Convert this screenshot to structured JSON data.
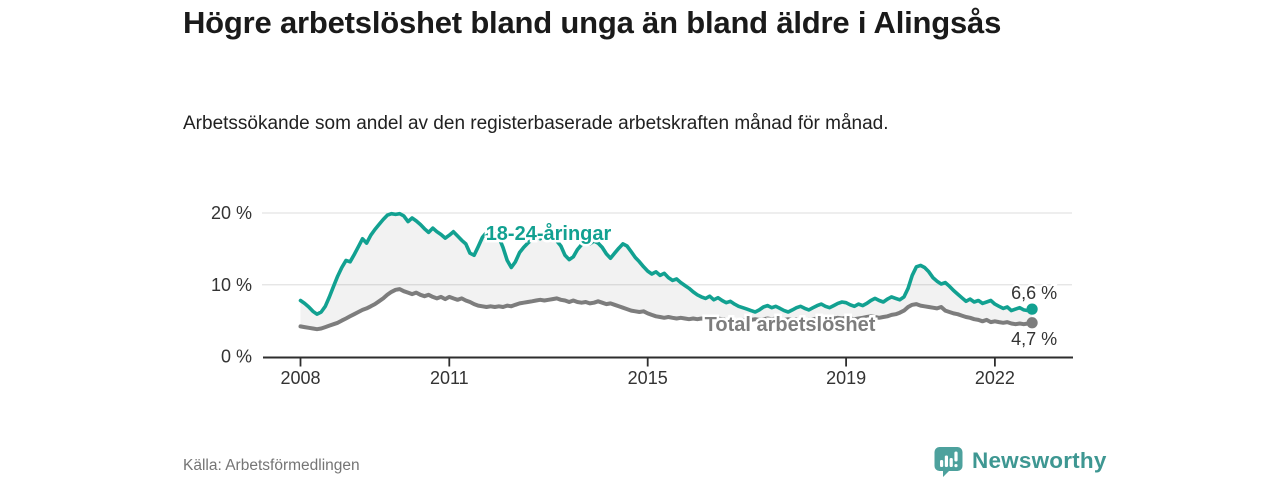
{
  "header": {
    "title": "Högre arbetslöshet bland unga än bland äldre i Alingsås",
    "subtitle": "Arbetssökande som andel av den registerbaserade arbetskraften månad för månad."
  },
  "footer": {
    "source": "Källa: Arbetsförmedlingen",
    "brand": "Newsworthy"
  },
  "colors": {
    "accent_teal": "#12A191",
    "series_gray": "#7d7d7d",
    "brand_teal_icon": "#4DA19D",
    "brand_teal_text": "#3E9792",
    "grid": "#e3e3e3",
    "axis": "#2e2e2e",
    "text_dark": "#333333",
    "band_fill": "rgba(0,0,0,0.05)"
  },
  "chart_data": {
    "type": "line",
    "title": "Högre arbetslöshet bland unga än bland äldre i Alingsås",
    "ylabel": "",
    "xlabel": "",
    "ylim": [
      0,
      20
    ],
    "grid": "horizontal",
    "legend_position": "inline-annotations",
    "frequency": "monthly",
    "start_year": 2008,
    "start_month": 1,
    "yticks": [
      {
        "value": 0,
        "label": "0 %"
      },
      {
        "value": 10,
        "label": "10 %"
      },
      {
        "value": 20,
        "label": "20 %"
      }
    ],
    "xticks": [
      {
        "value": 2008,
        "label": "2008"
      },
      {
        "value": 2011,
        "label": "2011"
      },
      {
        "value": 2015,
        "label": "2015"
      },
      {
        "value": 2019,
        "label": "2019"
      },
      {
        "value": 2022,
        "label": "2022"
      }
    ],
    "series": [
      {
        "name": "18-24-åringar",
        "color": "#12A191",
        "line_width": 3.6,
        "end_label": "6,6 %",
        "end_value": 6.6,
        "values": [
          7.8,
          7.4,
          6.9,
          6.3,
          5.9,
          6.2,
          7.0,
          8.3,
          9.8,
          11.2,
          12.4,
          13.4,
          13.2,
          14.2,
          15.3,
          16.4,
          15.8,
          16.9,
          17.7,
          18.4,
          19.1,
          19.7,
          19.9,
          19.8,
          19.9,
          19.6,
          18.8,
          19.3,
          18.9,
          18.4,
          17.8,
          17.3,
          17.9,
          17.4,
          17.0,
          16.5,
          16.9,
          17.4,
          16.8,
          16.2,
          15.7,
          14.4,
          14.1,
          15.3,
          16.6,
          17.3,
          16.8,
          17.2,
          16.6,
          15.2,
          13.4,
          12.4,
          13.2,
          14.5,
          15.2,
          15.8,
          16.3,
          16.7,
          16.4,
          16.8,
          16.3,
          16.6,
          16.1,
          15.4,
          14.1,
          13.5,
          13.9,
          14.9,
          15.6,
          16.0,
          15.7,
          16.1,
          15.8,
          15.2,
          14.3,
          13.7,
          14.4,
          15.1,
          15.7,
          15.4,
          14.6,
          13.8,
          13.2,
          12.5,
          11.9,
          11.5,
          11.8,
          11.3,
          11.6,
          11.0,
          10.6,
          10.8,
          10.3,
          9.9,
          9.5,
          9.0,
          8.6,
          8.3,
          8.1,
          8.4,
          7.9,
          8.2,
          7.8,
          7.5,
          7.7,
          7.3,
          7.0,
          6.8,
          6.6,
          6.4,
          6.2,
          6.5,
          6.9,
          7.1,
          6.8,
          7.0,
          6.7,
          6.4,
          6.2,
          6.5,
          6.8,
          7.0,
          6.7,
          6.5,
          6.8,
          7.1,
          7.3,
          7.0,
          6.8,
          7.1,
          7.4,
          7.6,
          7.5,
          7.2,
          7.0,
          7.3,
          7.1,
          7.4,
          7.8,
          8.1,
          7.8,
          7.6,
          8.0,
          8.3,
          8.1,
          7.9,
          8.3,
          9.5,
          11.3,
          12.5,
          12.7,
          12.4,
          11.8,
          11.0,
          10.5,
          10.1,
          10.3,
          9.8,
          9.2,
          8.7,
          8.2,
          7.7,
          8.0,
          7.6,
          7.8,
          7.4,
          7.6,
          7.8,
          7.3,
          7.0,
          6.7,
          6.9,
          6.4,
          6.6,
          6.8,
          6.5,
          6.4,
          6.6
        ]
      },
      {
        "name": "Total arbetslöshet",
        "color": "#7d7d7d",
        "line_width": 4,
        "end_label": "4,7 %",
        "end_value": 4.7,
        "values": [
          4.2,
          4.1,
          4.0,
          3.9,
          3.8,
          3.9,
          4.1,
          4.3,
          4.5,
          4.7,
          5.0,
          5.3,
          5.6,
          5.9,
          6.2,
          6.5,
          6.7,
          7.0,
          7.3,
          7.7,
          8.1,
          8.6,
          9.0,
          9.3,
          9.4,
          9.1,
          8.9,
          8.7,
          8.9,
          8.6,
          8.4,
          8.6,
          8.3,
          8.1,
          8.3,
          8.0,
          8.3,
          8.1,
          7.9,
          8.1,
          7.8,
          7.6,
          7.3,
          7.1,
          7.0,
          6.9,
          7.0,
          6.9,
          7.0,
          6.9,
          7.1,
          7.0,
          7.2,
          7.4,
          7.5,
          7.6,
          7.7,
          7.8,
          7.9,
          7.8,
          7.9,
          8.0,
          8.1,
          7.9,
          7.8,
          7.6,
          7.8,
          7.6,
          7.5,
          7.6,
          7.4,
          7.5,
          7.7,
          7.5,
          7.3,
          7.4,
          7.2,
          7.0,
          6.8,
          6.6,
          6.4,
          6.3,
          6.2,
          6.3,
          6.0,
          5.8,
          5.6,
          5.5,
          5.4,
          5.5,
          5.4,
          5.3,
          5.4,
          5.3,
          5.2,
          5.3,
          5.2,
          5.3,
          5.2,
          5.1,
          5.2,
          5.3,
          5.2,
          5.1,
          5.2,
          5.1,
          5.0,
          5.1,
          5.0,
          5.1,
          5.2,
          5.1,
          5.2,
          5.3,
          5.2,
          5.3,
          5.2,
          5.1,
          5.2,
          5.1,
          5.2,
          5.1,
          5.0,
          5.1,
          5.2,
          5.3,
          5.4,
          5.3,
          5.2,
          5.3,
          5.4,
          5.3,
          5.4,
          5.3,
          5.2,
          5.3,
          5.4,
          5.5,
          5.6,
          5.5,
          5.4,
          5.5,
          5.6,
          5.8,
          5.9,
          6.1,
          6.4,
          6.9,
          7.2,
          7.3,
          7.1,
          7.0,
          6.9,
          6.8,
          6.7,
          6.9,
          6.4,
          6.2,
          6.0,
          5.9,
          5.7,
          5.5,
          5.4,
          5.2,
          5.1,
          4.9,
          5.1,
          4.8,
          4.9,
          4.8,
          4.7,
          4.8,
          4.6,
          4.5,
          4.6,
          4.5,
          4.6,
          4.7
        ]
      }
    ],
    "annotations": [
      {
        "series": 0,
        "text": "18-24-åringar",
        "year": 2013.0,
        "value": 17.5
      },
      {
        "series": 1,
        "text": "Total arbetslöshet",
        "year": 2017.87,
        "value": 4.8
      }
    ],
    "band_fill_between_series": true
  }
}
